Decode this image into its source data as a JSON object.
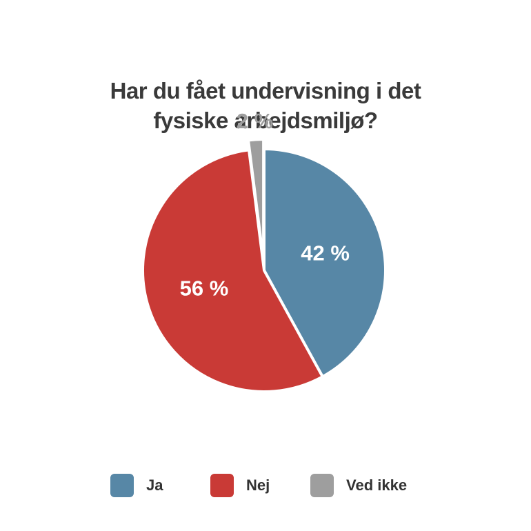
{
  "chart_data": {
    "type": "pie",
    "title_lines": [
      "Har du fået undervisning i det",
      "fysiske arbejdsmiljø?"
    ],
    "slices": [
      {
        "name": "Ja",
        "value": 42,
        "label": "42 %",
        "color": "#5787a6",
        "label_color": "#ffffff"
      },
      {
        "name": "Nej",
        "value": 56,
        "label": "56 %",
        "color": "#c93a36",
        "label_color": "#ffffff"
      },
      {
        "name": "Ved ikke",
        "value": 2,
        "label": "2 %",
        "color": "#9e9e9e",
        "label_color": "#9e9e9e"
      }
    ],
    "legend": [
      {
        "label": "Ja",
        "color": "#5787a6"
      },
      {
        "label": "Nej",
        "color": "#c93a36"
      },
      {
        "label": "Ved ikke",
        "color": "#9e9e9e"
      }
    ],
    "legend_position": "bottom"
  }
}
